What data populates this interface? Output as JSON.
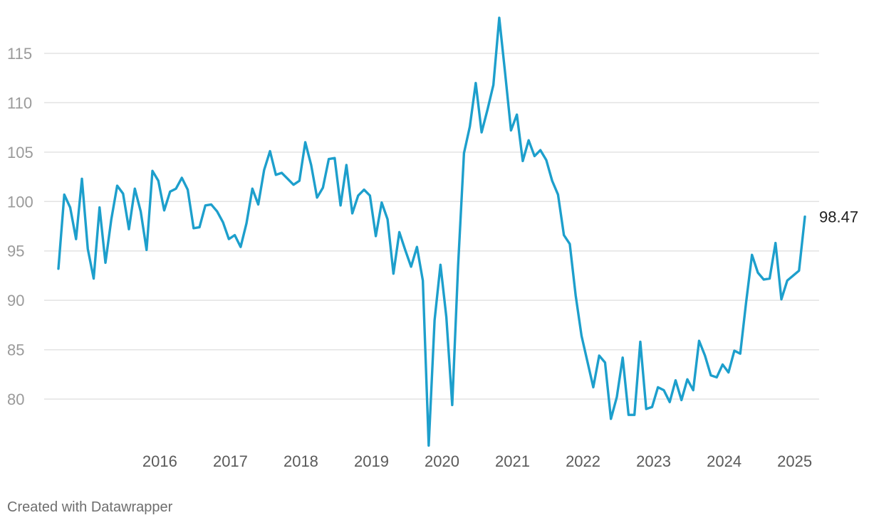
{
  "chart_data": {
    "type": "line",
    "title": "",
    "xlabel": "",
    "ylabel": "",
    "ylim": [
      75,
      118.7
    ],
    "yticks": [
      80,
      85,
      90,
      95,
      100,
      105,
      110,
      115
    ],
    "xticks": [
      "2016",
      "2017",
      "2018",
      "2019",
      "2020",
      "2021",
      "2022",
      "2023",
      "2024",
      "2025"
    ],
    "x_start": "2015-01",
    "x_frequency": "monthly",
    "grid": true,
    "legend": "none",
    "line_color": "#1d9fcc",
    "end_label": "98.47",
    "series": [
      {
        "values": [
          93.2,
          100.7,
          99.4,
          96.2,
          102.3,
          95.2,
          92.2,
          99.4,
          93.8,
          98.2,
          101.6,
          100.8,
          97.2,
          101.3,
          99.0,
          95.1,
          103.1,
          102.1,
          99.1,
          101.0,
          101.3,
          102.4,
          101.2,
          97.3,
          97.4,
          99.6,
          99.7,
          99.0,
          97.9,
          96.2,
          96.6,
          95.4,
          97.8,
          101.3,
          99.7,
          103.2,
          105.1,
          102.7,
          102.9,
          102.3,
          101.7,
          102.1,
          106.0,
          103.7,
          100.4,
          101.4,
          104.3,
          104.4,
          99.6,
          103.7,
          98.8,
          100.6,
          101.2,
          100.6,
          96.5,
          99.9,
          98.2,
          92.7,
          96.9,
          95.1,
          93.4,
          95.4,
          92.0,
          75.3,
          88.0,
          93.6,
          88.3,
          79.4,
          93.5,
          104.9,
          107.6,
          112.0,
          107.0,
          109.3,
          111.8,
          118.6,
          113.0,
          107.2,
          108.8,
          104.1,
          106.2,
          104.6,
          105.2,
          104.2,
          102.1,
          100.7,
          96.6,
          95.7,
          90.5,
          86.4,
          83.8,
          81.2,
          84.4,
          83.7,
          78.0,
          80.2,
          84.2,
          78.4,
          78.4,
          85.8,
          79.0,
          79.2,
          81.2,
          80.9,
          79.7,
          81.9,
          79.9,
          82.0,
          80.9,
          85.9,
          84.4,
          82.4,
          82.2,
          83.5,
          82.7,
          84.9,
          84.6,
          89.8,
          94.6,
          92.8,
          92.1,
          92.2,
          95.8,
          90.1,
          92.0,
          92.5,
          93.0,
          98.47
        ]
      }
    ]
  },
  "footer": {
    "credit": "Created with Datawrapper"
  }
}
